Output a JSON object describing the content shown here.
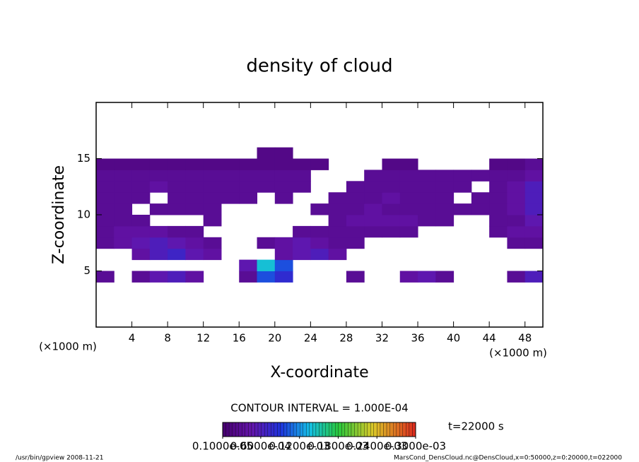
{
  "chart_data": {
    "type": "heatmap",
    "title": "density of cloud",
    "x_label": "X-coordinate",
    "y_label": "Z-coordinate",
    "x_unit": "(×1000 m)",
    "y_unit": "(×1000 m)",
    "xlim": [
      0,
      50
    ],
    "ylim": [
      0,
      20
    ],
    "xticks": [
      4,
      8,
      12,
      16,
      20,
      24,
      28,
      32,
      36,
      40,
      44,
      48
    ],
    "yticks": [
      5,
      10,
      15
    ],
    "x": [
      1,
      3,
      5,
      7,
      9,
      11,
      13,
      15,
      17,
      19,
      21,
      23,
      25,
      27,
      29,
      31,
      33,
      35,
      37,
      39,
      41,
      43,
      45,
      47,
      49
    ],
    "z": [
      4.5,
      5.5,
      6.5,
      7.5,
      8.5,
      9.5,
      10.5,
      11.5,
      12.5,
      13.5,
      14.5,
      15.5
    ],
    "values": [
      [
        3e-05,
        null,
        3e-05,
        5e-05,
        6e-05,
        4e-05,
        null,
        null,
        3e-05,
        0.0001,
        8e-05,
        null,
        null,
        null,
        3e-05,
        null,
        null,
        4e-05,
        5e-05,
        3e-05,
        null,
        null,
        null,
        3e-05,
        6e-05
      ],
      [
        null,
        null,
        null,
        null,
        null,
        null,
        null,
        null,
        5e-05,
        0.00014,
        0.0001,
        null,
        null,
        null,
        null,
        null,
        null,
        null,
        null,
        null,
        null,
        null,
        null,
        null,
        null
      ],
      [
        null,
        null,
        4e-05,
        6e-05,
        7e-05,
        5e-05,
        4e-05,
        null,
        null,
        null,
        4e-05,
        5e-05,
        6e-05,
        4e-05,
        null,
        null,
        null,
        null,
        null,
        null,
        null,
        null,
        null,
        null,
        null
      ],
      [
        3e-05,
        4e-05,
        5e-05,
        6e-05,
        5e-05,
        4e-05,
        3e-05,
        null,
        null,
        3e-05,
        4e-05,
        5e-05,
        4e-05,
        3e-05,
        3e-05,
        null,
        null,
        null,
        null,
        null,
        null,
        null,
        null,
        3e-05,
        3e-05
      ],
      [
        3e-05,
        4e-05,
        4e-05,
        4e-05,
        3e-05,
        3e-05,
        null,
        null,
        null,
        null,
        null,
        3e-05,
        3e-05,
        3e-05,
        3e-05,
        3e-05,
        3e-05,
        3e-05,
        null,
        null,
        null,
        null,
        3e-05,
        4e-05,
        4e-05
      ],
      [
        3e-05,
        3e-05,
        3e-05,
        null,
        null,
        null,
        3e-05,
        null,
        null,
        null,
        null,
        null,
        null,
        3e-05,
        4e-05,
        4e-05,
        4e-05,
        4e-05,
        3e-05,
        3e-05,
        null,
        null,
        3e-05,
        3e-05,
        5e-05
      ],
      [
        3e-05,
        3e-05,
        null,
        3e-05,
        3e-05,
        3e-05,
        3e-05,
        null,
        null,
        null,
        null,
        null,
        3e-05,
        3e-05,
        3e-05,
        4e-05,
        3e-05,
        3e-05,
        3e-05,
        3e-05,
        3e-05,
        3e-05,
        3e-05,
        4e-05,
        6e-05
      ],
      [
        3e-05,
        3e-05,
        3e-05,
        null,
        3e-05,
        3e-05,
        3e-05,
        3e-05,
        3e-05,
        null,
        3e-05,
        null,
        null,
        3e-05,
        3e-05,
        3e-05,
        4e-05,
        3e-05,
        3e-05,
        3e-05,
        null,
        3e-05,
        3e-05,
        4e-05,
        6e-05
      ],
      [
        3e-05,
        3e-05,
        3e-05,
        4e-05,
        3e-05,
        3e-05,
        3e-05,
        3e-05,
        3e-05,
        3e-05,
        3e-05,
        3e-05,
        null,
        null,
        3e-05,
        3e-05,
        3e-05,
        3e-05,
        3e-05,
        3e-05,
        3e-05,
        null,
        3e-05,
        4e-05,
        6e-05
      ],
      [
        3e-05,
        3e-05,
        3e-05,
        3e-05,
        3e-05,
        3e-05,
        3e-05,
        3e-05,
        3e-05,
        3e-05,
        3e-05,
        3e-05,
        null,
        null,
        null,
        3e-05,
        3e-05,
        3e-05,
        3e-05,
        3e-05,
        3e-05,
        3e-05,
        3e-05,
        3e-05,
        4e-05
      ],
      [
        2e-05,
        2e-05,
        2e-05,
        2e-05,
        2e-05,
        2e-05,
        2e-05,
        2e-05,
        2e-05,
        2e-05,
        2e-05,
        2e-05,
        2e-05,
        null,
        null,
        null,
        2e-05,
        2e-05,
        null,
        null,
        null,
        null,
        2e-05,
        2e-05,
        3e-05
      ],
      [
        null,
        null,
        null,
        null,
        null,
        null,
        null,
        null,
        null,
        2e-05,
        2e-05,
        null,
        null,
        null,
        null,
        null,
        null,
        null,
        null,
        null,
        null,
        null,
        null,
        null,
        null
      ]
    ],
    "contour_interval": "CONTOUR INTERVAL = 1.000E-04",
    "time_label": "t=22000 s",
    "colorbar_ticks": [
      {
        "value": 1e-06,
        "label": "0.1000e-05"
      },
      {
        "value": 6e-05,
        "label": "0.6000e-04"
      },
      {
        "value": 0.00012,
        "label": "0.1200e-03"
      },
      {
        "value": 0.00018,
        "label": "0.1800e-03"
      },
      {
        "value": 0.00024,
        "label": "0.2400e-03"
      },
      {
        "value": 0.0003,
        "label": "0.3000e-03"
      }
    ],
    "footer_left": "/usr/bin/gpview  2008-11-21",
    "footer_right": "MarsCond_DensCloud.nc@DensCloud,x=0:50000,z=0:20000,t=022000"
  }
}
